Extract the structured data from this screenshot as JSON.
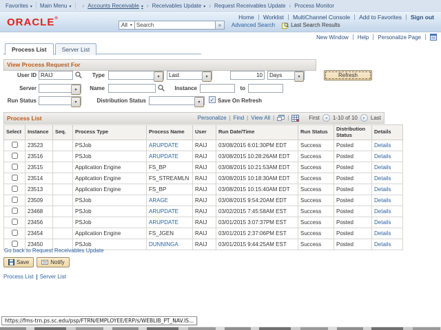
{
  "colors": {
    "brand_red": "#e0211f",
    "accent_orange": "#b65c1f",
    "link_blue": "#2d62a0",
    "nav_navy": "#33557e",
    "button_tan": "#f1dcb2"
  },
  "breadcrumb": {
    "favorites_label": "Favorites",
    "main_menu_label": "Main Menu",
    "crumbs": [
      {
        "label": "Accounts Receivable"
      },
      {
        "label": "Receivables Update"
      },
      {
        "label": "Request Receivables Update"
      },
      {
        "label": "Process Monitor"
      }
    ]
  },
  "header": {
    "logo": "ORACLE",
    "logo_mark": "®",
    "links": [
      "Home",
      "Worklist",
      "MultiChannel Console",
      "Add to Favorites"
    ],
    "sign_out": "Sign out",
    "search_scope": "All",
    "search_placeholder": "Search",
    "advanced_search": "Advanced Search",
    "last_search_results": "Last Search Results"
  },
  "pagebar": {
    "new_window": "New Window",
    "help": "Help",
    "personalize_page": "Personalize Page"
  },
  "tabs": [
    {
      "label": "Process List",
      "active": true
    },
    {
      "label": "Server List",
      "active": false
    }
  ],
  "filter": {
    "title": "View Process Request For",
    "user_id_label": "User ID",
    "user_id_value": "RAIJ",
    "type_label": "Type",
    "type_value": "",
    "last_value": "Last",
    "days_count": "10",
    "days_unit": "Days",
    "refresh_label": "Refresh",
    "server_label": "Server",
    "server_value": "",
    "name_label": "Name",
    "name_value": "",
    "instance_label": "Instance",
    "instance_from": "",
    "to_label": "to",
    "instance_to": "",
    "run_status_label": "Run Status",
    "run_status_value": "",
    "distribution_status_label": "Distribution Status",
    "distribution_status_value": "",
    "save_on_refresh_label": "Save On Refresh",
    "save_on_refresh_checked": true
  },
  "grid": {
    "title": "Process List",
    "toolbar": {
      "personalize": "Personalize",
      "find": "Find",
      "view_all": "View All"
    },
    "paging": {
      "first": "First",
      "range": "1-10 of 10",
      "last": "Last"
    },
    "columns": [
      "Select",
      "Instance",
      "Seq.",
      "Process Type",
      "Process Name",
      "User",
      "Run Date/Time",
      "Run Status",
      "Distribution Status",
      "Details"
    ],
    "rows": [
      {
        "instance": "23523",
        "seq": "",
        "process_type": "PSJob",
        "process_name": "ARUPDATE",
        "name_is_link": true,
        "user": "RAIJ",
        "run_datetime": "03/08/2015 6:01:30PM EDT",
        "run_status": "Success",
        "distribution_status": "Posted",
        "details": "Details"
      },
      {
        "instance": "23516",
        "seq": "",
        "process_type": "PSJob",
        "process_name": "ARUPDATE",
        "name_is_link": true,
        "user": "RAIJ",
        "run_datetime": "03/08/2015 10:28:26AM EDT",
        "run_status": "Success",
        "distribution_status": "Posted",
        "details": "Details"
      },
      {
        "instance": "23515",
        "seq": "",
        "process_type": "Application Engine",
        "process_name": "FS_BP",
        "name_is_link": false,
        "user": "RAIJ",
        "run_datetime": "03/08/2015 10:21:53AM EDT",
        "run_status": "Success",
        "distribution_status": "Posted",
        "details": "Details"
      },
      {
        "instance": "23514",
        "seq": "",
        "process_type": "Application Engine",
        "process_name": "FS_STREAMLN",
        "name_is_link": false,
        "user": "RAIJ",
        "run_datetime": "03/08/2015 10:18:30AM EDT",
        "run_status": "Success",
        "distribution_status": "Posted",
        "details": "Details"
      },
      {
        "instance": "23513",
        "seq": "",
        "process_type": "Application Engine",
        "process_name": "FS_BP",
        "name_is_link": false,
        "user": "RAIJ",
        "run_datetime": "03/08/2015 10:15:40AM EDT",
        "run_status": "Success",
        "distribution_status": "Posted",
        "details": "Details"
      },
      {
        "instance": "23509",
        "seq": "",
        "process_type": "PSJob",
        "process_name": "ARAGE",
        "name_is_link": true,
        "user": "RAIJ",
        "run_datetime": "03/08/2015 9:54:20AM EDT",
        "run_status": "Success",
        "distribution_status": "Posted",
        "details": "Details"
      },
      {
        "instance": "23468",
        "seq": "",
        "process_type": "PSJob",
        "process_name": "ARUPDATE",
        "name_is_link": true,
        "user": "RAIJ",
        "run_datetime": "03/02/2015 7:45:58AM EST",
        "run_status": "Success",
        "distribution_status": "Posted",
        "details": "Details"
      },
      {
        "instance": "23456",
        "seq": "",
        "process_type": "PSJob",
        "process_name": "ARUPDATE",
        "name_is_link": true,
        "user": "RAIJ",
        "run_datetime": "03/01/2015 3:07:37PM EST",
        "run_status": "Success",
        "distribution_status": "Posted",
        "details": "Details"
      },
      {
        "instance": "23454",
        "seq": "",
        "process_type": "Application Engine",
        "process_name": "FS_JGEN",
        "name_is_link": false,
        "user": "RAIJ",
        "run_datetime": "03/01/2015 2:37:06PM EST",
        "run_status": "Success",
        "distribution_status": "Posted",
        "details": "Details"
      },
      {
        "instance": "23450",
        "seq": "",
        "process_type": "PSJob",
        "process_name": "DUNNINGA",
        "name_is_link": true,
        "user": "RAIJ",
        "run_datetime": "03/01/2015 9:44:25AM EST",
        "run_status": "Success",
        "distribution_status": "Posted",
        "details": "Details"
      }
    ]
  },
  "footer": {
    "go_back": "Go back to Request Receivables Update",
    "save_label": "Save",
    "notify_label": "Notify",
    "bottom_links": [
      "Process List",
      "Server List"
    ]
  },
  "statusbar": {
    "url": "https://fms-trn.ps.sc.edu/psp/FTRN/EMPLOYEE/ERP/s/WEBLIB_PT_NAV.IS..."
  }
}
